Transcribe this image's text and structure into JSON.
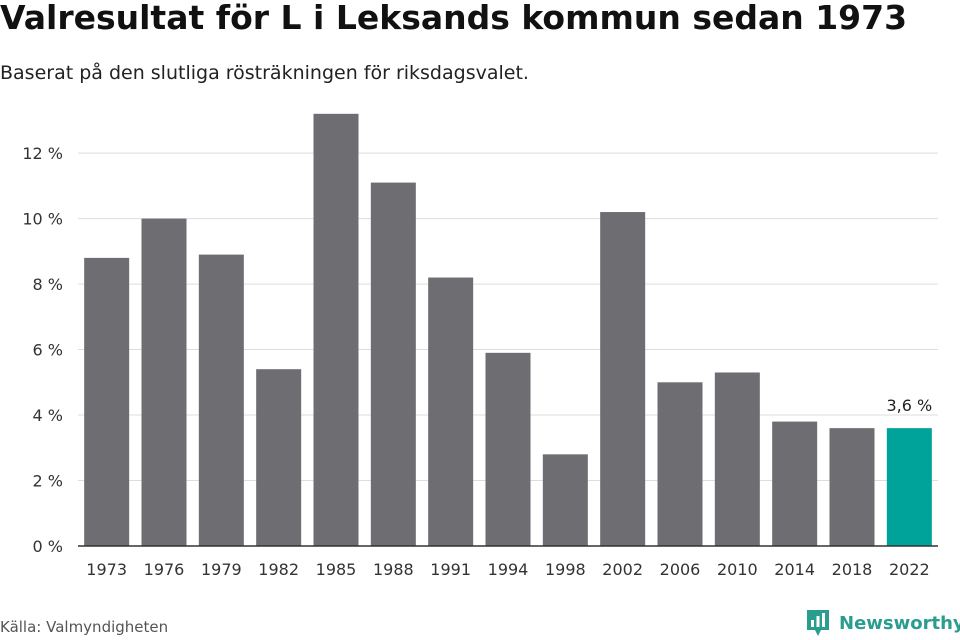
{
  "title": "Valresultat för L i Leksands kommun sedan 1973",
  "subtitle": "Baserat på den slutliga rösträkningen för riksdagsvalet.",
  "source": "Källa: Valmyndigheten",
  "brand": {
    "name": "Newsworthy",
    "icon": "newsworthy-logo-icon"
  },
  "colors": {
    "bar": "#6e6d72",
    "highlight": "#00a39a",
    "grid": "#dddddd",
    "axis": "#333333",
    "brand": "#2a9d8f"
  },
  "chart_data": {
    "type": "bar",
    "title": "Valresultat för L i Leksands kommun sedan 1973",
    "subtitle": "Baserat på den slutliga rösträkningen för riksdagsvalet.",
    "categories": [
      "1973",
      "1976",
      "1979",
      "1982",
      "1985",
      "1988",
      "1991",
      "1994",
      "1998",
      "2002",
      "2006",
      "2010",
      "2014",
      "2018",
      "2022"
    ],
    "values": [
      8.8,
      10.0,
      8.9,
      5.4,
      13.2,
      11.1,
      8.2,
      5.9,
      2.8,
      10.2,
      5.0,
      5.3,
      3.8,
      3.6,
      3.6
    ],
    "highlight_index": 14,
    "data_labels": [
      {
        "index": 14,
        "text": "3,6 %"
      }
    ],
    "yticks": [
      "0 %",
      "2 %",
      "4 %",
      "6 %",
      "8 %",
      "10 %",
      "12 %"
    ],
    "ylim": [
      0,
      13.5
    ],
    "grid": true,
    "legend": "none"
  }
}
